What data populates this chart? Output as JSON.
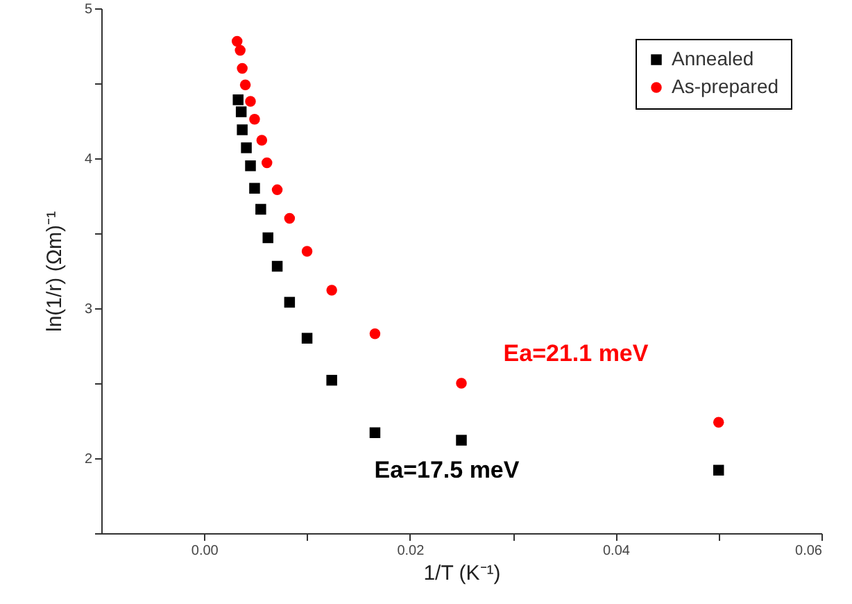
{
  "chart_data": {
    "type": "scatter",
    "xlabel": "1/T (K⁻¹)",
    "ylabel": "ln(1/r) (Ωm)⁻¹",
    "annotations": [
      "Ea=17.5 meV",
      "Ea=21.1 meV"
    ],
    "xlim": [
      -0.01,
      0.06
    ],
    "xticks": [
      {
        "value": 0,
        "label": "0.00"
      },
      {
        "value": 0.01,
        "label": null
      },
      {
        "value": 0.02,
        "label": "0.02"
      },
      {
        "value": 0.03,
        "label": null
      },
      {
        "value": 0.04,
        "label": "0.04"
      },
      {
        "value": 0.05,
        "label": null
      },
      {
        "value": 0.06,
        "label": "0.06"
      }
    ],
    "ylim": [
      1.5,
      5
    ],
    "yticks": [
      {
        "value": 1.5,
        "label": null
      },
      2,
      {
        "value": 2.5,
        "label": null
      },
      3,
      {
        "value": 3.5,
        "label": null
      },
      4,
      {
        "value": 4.5,
        "label": null
      },
      5
    ],
    "grid": false,
    "legend": "top right",
    "series": [
      {
        "name": "Annealed",
        "color": "#000000",
        "marker": "square",
        "x": [
          0.0033,
          0.0036,
          0.0037,
          0.0041,
          0.0045,
          0.0049,
          0.0055,
          0.0062,
          0.0071,
          0.0083,
          0.01,
          0.0124,
          0.0166,
          0.025,
          0.05
        ],
        "values": [
          4.39,
          4.31,
          4.19,
          4.07,
          3.95,
          3.8,
          3.66,
          3.47,
          3.28,
          3.04,
          2.8,
          2.52,
          2.17,
          2.12,
          1.92
        ]
      },
      {
        "name": "As-prepared",
        "color": "#ff0000",
        "marker": "circle",
        "x": [
          0.0032,
          0.0035,
          0.0037,
          0.004,
          0.0045,
          0.0049,
          0.0056,
          0.0061,
          0.0071,
          0.0083,
          0.01,
          0.0124,
          0.0166,
          0.025,
          0.05
        ],
        "values": [
          4.78,
          4.72,
          4.6,
          4.49,
          4.38,
          4.26,
          4.12,
          3.97,
          3.79,
          3.6,
          3.38,
          3.12,
          2.83,
          2.5,
          2.24
        ]
      }
    ]
  }
}
